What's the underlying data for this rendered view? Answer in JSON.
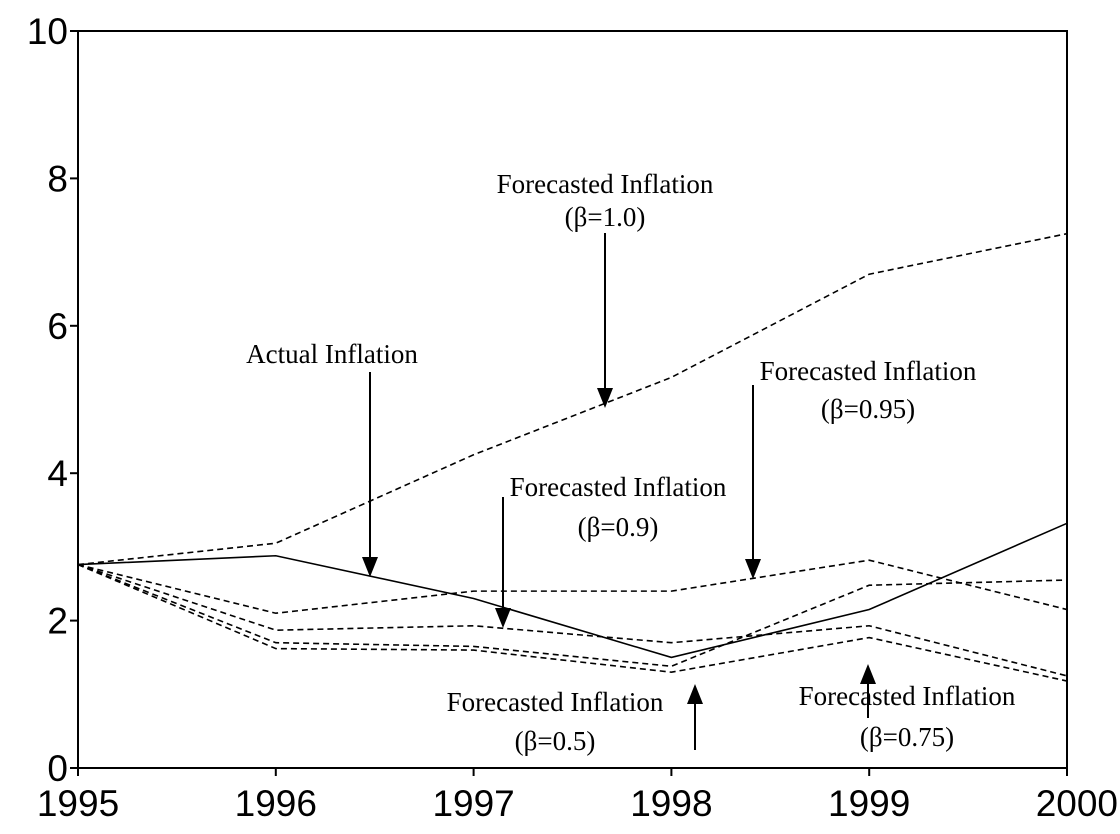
{
  "chart_data": {
    "type": "line",
    "x": [
      1995,
      1996,
      1997,
      1998,
      1999,
      2000
    ],
    "series": [
      {
        "name": "Actual Inflation",
        "color": "#000000",
        "dash": "solid",
        "values": [
          2.76,
          2.88,
          2.3,
          1.5,
          2.15,
          3.32
        ]
      },
      {
        "name": "Forecasted Inflation (β=1.0)",
        "color": "#000000",
        "dash": "dashed",
        "values": [
          2.76,
          3.05,
          4.25,
          5.3,
          6.7,
          7.25
        ]
      },
      {
        "name": "Forecasted Inflation (β=0.95)",
        "color": "#000000",
        "dash": "dashed",
        "values": [
          2.76,
          2.1,
          2.4,
          2.4,
          2.82,
          2.15
        ]
      },
      {
        "name": "Forecasted Inflation (β=0.9)",
        "color": "#000000",
        "dash": "dashed",
        "values": [
          2.76,
          1.87,
          1.93,
          1.7,
          1.93,
          1.25
        ]
      },
      {
        "name": "Forecasted Inflation (β=0.75)",
        "color": "#000000",
        "dash": "dashed",
        "values": [
          2.76,
          1.7,
          1.65,
          1.38,
          2.48,
          2.55
        ]
      },
      {
        "name": "Forecasted Inflation (β=0.5)",
        "color": "#000000",
        "dash": "dashed",
        "values": [
          2.76,
          1.62,
          1.6,
          1.3,
          1.77,
          1.18
        ]
      }
    ],
    "annotations": [
      {
        "lines": [
          "Forecasted Inflation",
          "(β=1.0)"
        ]
      },
      {
        "lines": [
          "Actual Inflation"
        ]
      },
      {
        "lines": [
          "Forecasted Inflation",
          "(β=0.95)"
        ]
      },
      {
        "lines": [
          "Forecasted Inflation",
          "(β=0.9)"
        ]
      },
      {
        "lines": [
          "Forecasted Inflation",
          "(β=0.5)"
        ]
      },
      {
        "lines": [
          "Forecasted Inflation",
          "(β=0.75)"
        ]
      }
    ],
    "xlim": [
      1995,
      2000
    ],
    "xticks": [
      1995,
      1996,
      1997,
      1998,
      1999,
      2000
    ],
    "ylim": [
      0,
      10
    ],
    "yticks": [
      0,
      2,
      4,
      6,
      8,
      10
    ],
    "grid": false
  }
}
